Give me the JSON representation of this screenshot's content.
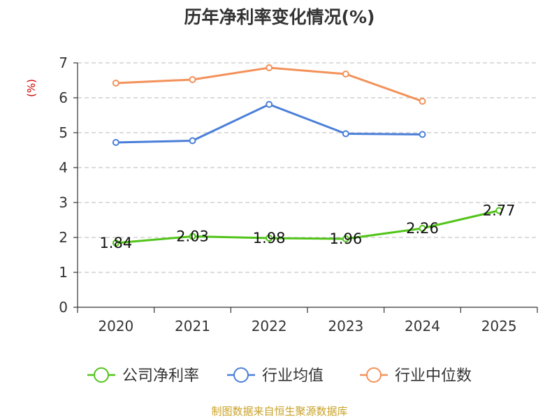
{
  "chart_data": {
    "type": "line",
    "title": "历年净利率变化情况(%)",
    "ylabel": "(%)",
    "xlabel": "",
    "ylim": [
      0,
      7
    ],
    "yticks": [
      0,
      1,
      2,
      3,
      4,
      5,
      6,
      7
    ],
    "categories": [
      "2020",
      "2021",
      "2022",
      "2023",
      "2024",
      "2025"
    ],
    "grid": true,
    "legend_position": "bottom",
    "series": [
      {
        "name": "公司净利率",
        "color": "#52c41a",
        "values": [
          1.84,
          2.03,
          1.98,
          1.96,
          2.26,
          2.77
        ],
        "show_labels": true
      },
      {
        "name": "行业均值",
        "color": "#4a7fd9",
        "values": [
          4.72,
          4.77,
          5.81,
          4.97,
          4.95,
          null
        ],
        "show_labels": false
      },
      {
        "name": "行业中位数",
        "color": "#f39159",
        "values": [
          6.42,
          6.52,
          6.86,
          6.68,
          5.9,
          null
        ],
        "show_labels": false
      }
    ],
    "source": "制图数据来自恒生聚源数据库",
    "source_color": "#c9a227"
  }
}
